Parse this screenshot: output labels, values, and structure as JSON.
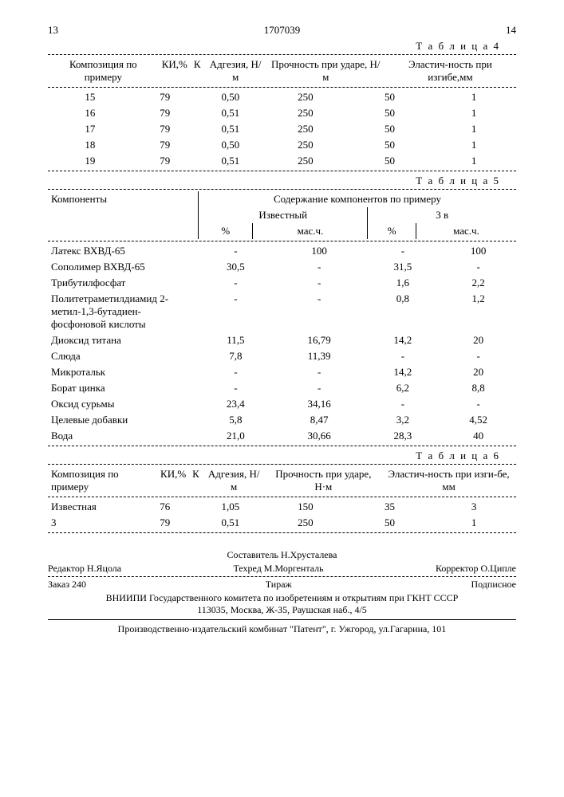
{
  "header": {
    "page_left": "13",
    "doc_number": "1707039",
    "page_right": "14"
  },
  "table4": {
    "label": "Т а б л и ц а 4",
    "cols": [
      "Композиция по примеру",
      "КИ,%",
      "К",
      "Адгезия, Н/м",
      "Прочность при ударе, Н/м",
      "Эластич-ность при изгибе,мм"
    ],
    "rows": [
      [
        "15",
        "79",
        "0,50",
        "250",
        "50",
        "1"
      ],
      [
        "16",
        "79",
        "0,51",
        "250",
        "50",
        "1"
      ],
      [
        "17",
        "79",
        "0,51",
        "250",
        "50",
        "1"
      ],
      [
        "18",
        "79",
        "0,50",
        "250",
        "50",
        "1"
      ],
      [
        "19",
        "79",
        "0,51",
        "250",
        "50",
        "1"
      ]
    ]
  },
  "table5": {
    "label": "Т а б л и ц а 5",
    "head_components": "Компоненты",
    "head_content": "Содержание компонентов по примеру",
    "sub_known": "Известный",
    "sub_3v": "3 в",
    "unit_pct": "%",
    "unit_mass": "мас.ч.",
    "rows": [
      [
        "Латекс ВХВД-65",
        "-",
        "100",
        "-",
        "100"
      ],
      [
        "Сополимер ВХВД-65",
        "30,5",
        "-",
        "31,5",
        "-"
      ],
      [
        "Трибутилфосфат",
        "-",
        "-",
        "1,6",
        "2,2"
      ],
      [
        "Политетраметилдиамид 2-метил-1,3-бутадиен-фосфоновой кислоты",
        "-",
        "-",
        "0,8",
        "1,2"
      ],
      [
        "Диоксид титана",
        "11,5",
        "16,79",
        "14,2",
        "20"
      ],
      [
        "Слюда",
        "7,8",
        "11,39",
        "-",
        "-"
      ],
      [
        "Микротальк",
        "-",
        "-",
        "14,2",
        "20"
      ],
      [
        "Борат цинка",
        "-",
        "-",
        "6,2",
        "8,8"
      ],
      [
        "Оксид сурьмы",
        "23,4",
        "34,16",
        "-",
        "-"
      ],
      [
        "Целевые добавки",
        "5,8",
        "8,47",
        "3,2",
        "4,52"
      ],
      [
        "Вода",
        "21,0",
        "30,66",
        "28,3",
        "40"
      ]
    ]
  },
  "table6": {
    "label": "Т а б л и ц а 6",
    "cols": [
      "Композиция по примеру",
      "КИ,%",
      "К",
      "Адгезия, Н/м",
      "Прочность при ударе, Н·м",
      "Эластич-ность при изги-бе, мм"
    ],
    "rows": [
      [
        "Известная",
        "76",
        "1,05",
        "150",
        "35",
        "3"
      ],
      [
        "3",
        "79",
        "0,51",
        "250",
        "50",
        "1"
      ]
    ]
  },
  "footer": {
    "editor": "Редактор Н.Яцола",
    "compiler": "Составитель Н.Хрусталева",
    "techred": "Техред М.Моргенталь",
    "corrector": "Корректор О.Ципле",
    "order": "Заказ 240",
    "tirage": "Тираж",
    "subscr": "Подписное",
    "org": "ВНИИПИ Государственного комитета по изобретениям и открытиям при ГКНТ СССР",
    "addr1": "113035, Москва, Ж-35, Раушская наб., 4/5",
    "addr2": "Производственно-издательский комбинат \"Патент\", г. Ужгород, ул.Гагарина, 101"
  }
}
